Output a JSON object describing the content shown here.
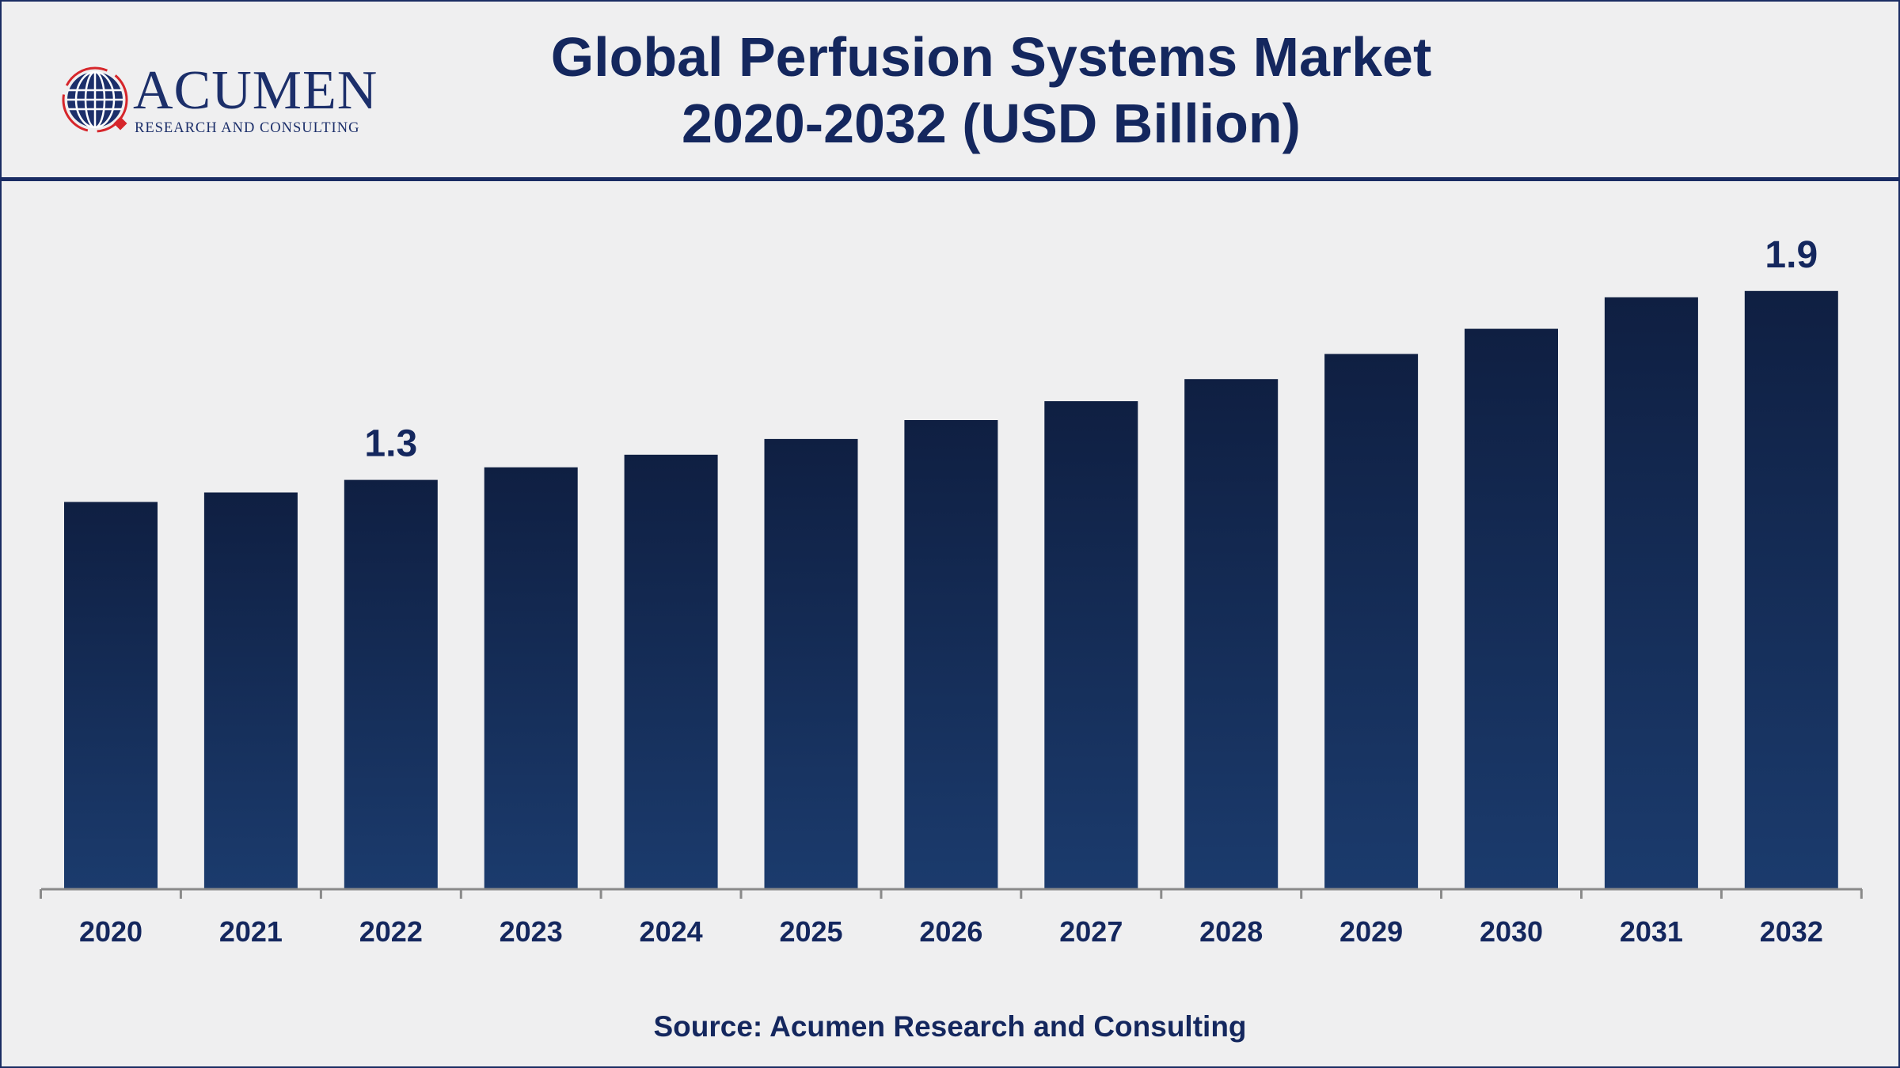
{
  "header": {
    "title_line1": "Global Perfusion Systems Market",
    "title_line2": "2020-2032 (USD Billion)"
  },
  "logo": {
    "icon": "globe-icon",
    "wordmark": "ACUMEN",
    "tagline": "RESEARCH AND CONSULTING"
  },
  "source": "Source: Acumen Research and Consulting",
  "colors": {
    "accent": "#14275e",
    "bar_top": "#0f1f42",
    "bar_bottom": "#1b3b6d",
    "logo_red": "#d6262b"
  },
  "chart_data": {
    "type": "bar",
    "categories": [
      "2020",
      "2021",
      "2022",
      "2023",
      "2024",
      "2025",
      "2026",
      "2027",
      "2028",
      "2029",
      "2030",
      "2031",
      "2032"
    ],
    "values": [
      1.23,
      1.26,
      1.3,
      1.34,
      1.38,
      1.43,
      1.49,
      1.55,
      1.62,
      1.7,
      1.78,
      1.88,
      1.9
    ],
    "data_labels": {
      "2022": "1.3",
      "2032": "1.9"
    },
    "title": "Global Perfusion Systems Market 2020-2032 (USD Billion)",
    "xlabel": "",
    "ylabel": "",
    "ylim": [
      0,
      2.0
    ],
    "grid": false,
    "legend": "none"
  }
}
